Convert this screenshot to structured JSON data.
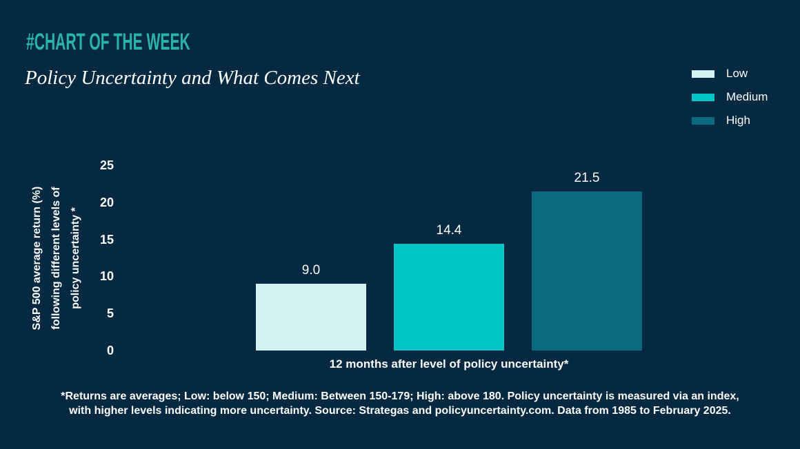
{
  "header": {
    "kicker": "#CHART OF THE WEEK",
    "title": "Policy Uncertainty and What Comes Next"
  },
  "colors": {
    "background": "#042940",
    "kicker_accent": "#2AB3AC",
    "text": "#FFFFFF",
    "bar_low": "#D2F1F2",
    "bar_medium": "#00C5C6",
    "bar_high": "#0B6A80"
  },
  "chart_data": {
    "type": "bar",
    "title": "Policy Uncertainty and What Comes Next",
    "categories": [
      "Low",
      "Medium",
      "High"
    ],
    "values": [
      9.0,
      14.4,
      21.5
    ],
    "value_labels": [
      "9.0",
      "14.4",
      "21.5"
    ],
    "bar_colors": [
      "#D2F1F2",
      "#00C5C6",
      "#0B6A80"
    ],
    "xlabel": "12 months after level of policy uncertainty*",
    "ylabel_lines": [
      "S&P 500 average return (%)",
      "following different levels of",
      "policy uncertainty *"
    ],
    "ylim": [
      0,
      25
    ],
    "yticks": [
      0,
      5,
      10,
      15,
      20,
      25
    ],
    "grid": false,
    "legend": {
      "position": "top-right",
      "entries": [
        {
          "label": "Low",
          "color": "#D2F1F2"
        },
        {
          "label": "Medium",
          "color": "#00C5C6"
        },
        {
          "label": "High",
          "color": "#0B6A80"
        }
      ]
    }
  },
  "footnote": {
    "line1": "*Returns are averages; Low: below 150; Medium: Between 150-179; High: above 180. Policy uncertainty is measured via an index,",
    "line2": "with higher levels indicating more uncertainty. Source: Strategas and policyuncertainty.com. Data from 1985 to February 2025."
  }
}
